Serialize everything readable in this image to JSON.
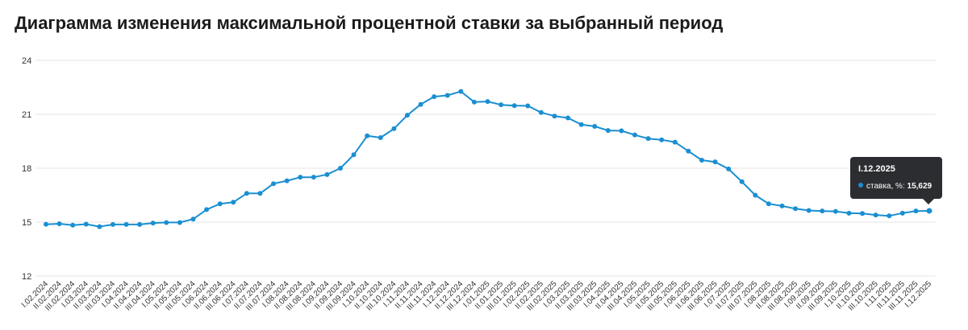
{
  "title": "Диаграмма изменения максимальной процентной ставки за выбранный период",
  "colors": {
    "line": "#1a8fd1",
    "tooltip_bg": "#2b2d30"
  },
  "tooltip": {
    "date": "I.12.2025",
    "series_label": "ставка, %:",
    "value": "15,629"
  },
  "chart_data": {
    "type": "line",
    "title": "Диаграмма изменения максимальной процентной ставки за выбранный период",
    "xlabel": "",
    "ylabel": "",
    "ylim": [
      12,
      24
    ],
    "yticks": [
      12,
      15,
      18,
      21,
      24
    ],
    "grid": true,
    "categories": [
      "I.02.2024",
      "II.02.2024",
      "III.02.2024",
      "I.03.2024",
      "II.03.2024",
      "III.03.2024",
      "I.04.2024",
      "II.04.2024",
      "III.04.2024",
      "I.05.2024",
      "II.05.2024",
      "III.05.2024",
      "I.06.2024",
      "II.06.2024",
      "III.06.2024",
      "I.07.2024",
      "II.07.2024",
      "III.07.2024",
      "I.08.2024",
      "II.08.2024",
      "III.08.2024",
      "I.09.2024",
      "II.09.2024",
      "III.09.2024",
      "I.10.2024",
      "II.10.2024",
      "III.10.2024",
      "I.11.2024",
      "II.11.2024",
      "III.11.2024",
      "I.12.2024",
      "II.12.2024",
      "III.12.2024",
      "I.01.2025",
      "II.01.2025",
      "III.01.2025",
      "I.02.2025",
      "II.02.2025",
      "III.02.2025",
      "I.03.2025",
      "II.03.2025",
      "III.03.2025",
      "I.04.2025",
      "II.04.2025",
      "III.04.2025",
      "I.05.2025",
      "II.05.2025",
      "III.05.2025",
      "I.06.2025",
      "II.06.2025",
      "III.06.2025",
      "I.07.2025",
      "II.07.2025",
      "III.07.2025",
      "I.08.2025",
      "II.08.2025",
      "III.08.2025",
      "I.09.2025",
      "II.09.2025",
      "III.09.2025",
      "I.10.2025",
      "II.10.2025",
      "III.10.2025",
      "I.11.2025",
      "II.11.2025",
      "III.11.2025",
      "I.12.2025"
    ],
    "series": [
      {
        "name": "ставка, %",
        "values": [
          14.88,
          14.91,
          14.83,
          14.89,
          14.75,
          14.87,
          14.87,
          14.87,
          14.95,
          14.98,
          14.98,
          15.17,
          15.7,
          16.02,
          16.11,
          16.6,
          16.6,
          17.14,
          17.3,
          17.5,
          17.5,
          17.65,
          18.0,
          18.75,
          19.8,
          19.7,
          20.2,
          20.95,
          21.55,
          21.98,
          22.05,
          22.27,
          21.68,
          21.71,
          21.53,
          21.48,
          21.47,
          21.1,
          20.9,
          20.8,
          20.43,
          20.33,
          20.1,
          20.08,
          19.85,
          19.65,
          19.58,
          19.45,
          18.95,
          18.45,
          18.35,
          17.96,
          17.25,
          16.5,
          16.02,
          15.9,
          15.75,
          15.65,
          15.62,
          15.6,
          15.5,
          15.48,
          15.4,
          15.35,
          15.5,
          15.62,
          15.629
        ]
      }
    ]
  }
}
